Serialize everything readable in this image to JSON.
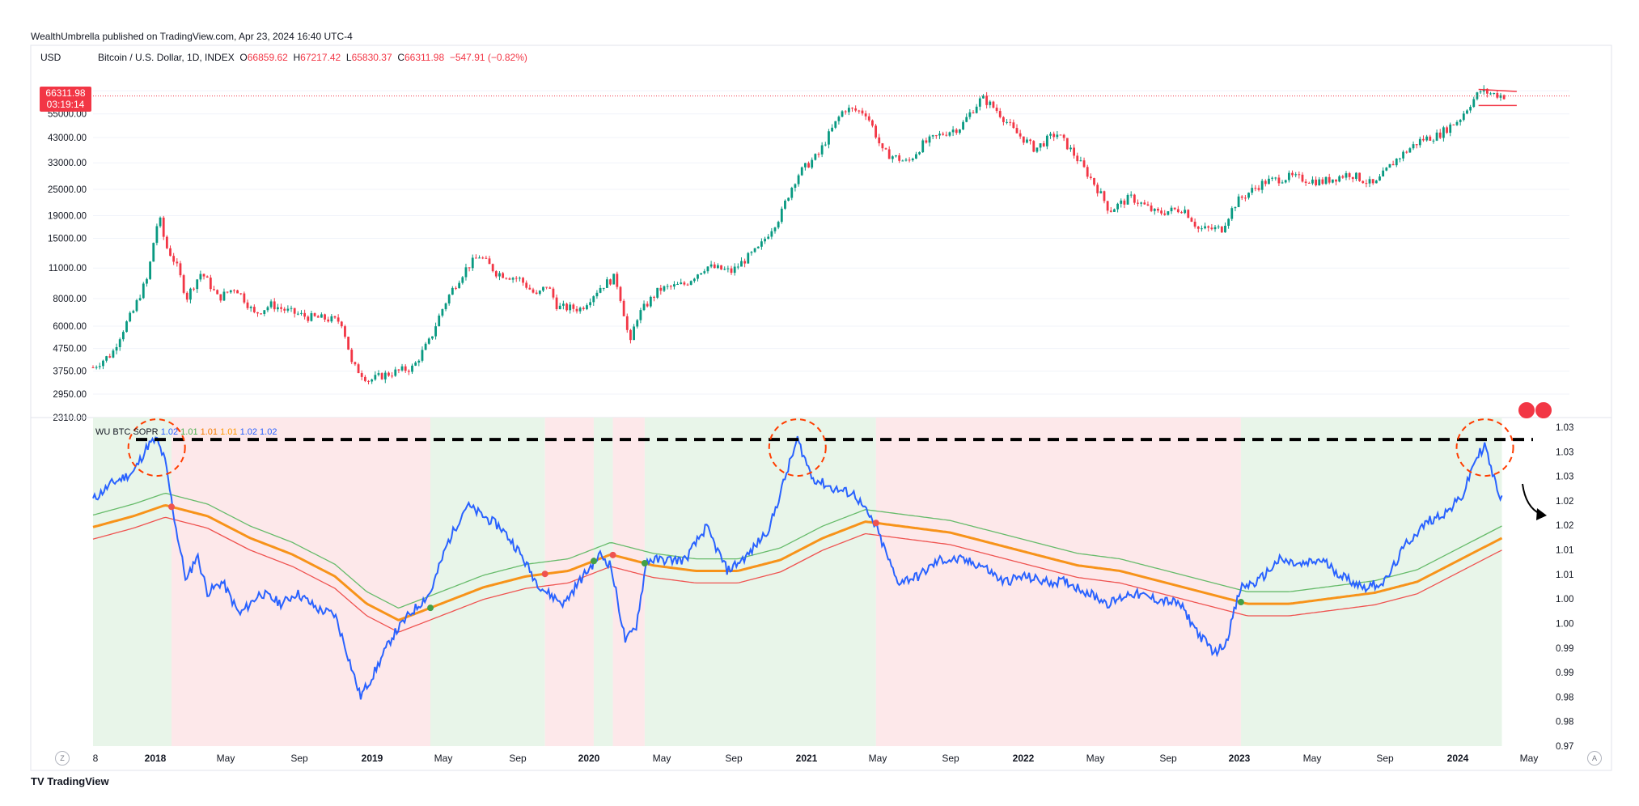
{
  "header": {
    "published": "WealthUmbrella published on TradingView.com, Apr 23, 2024 16:40 UTC-4"
  },
  "symbol": {
    "currency": "USD",
    "name": "Bitcoin / U.S. Dollar, 1D, INDEX",
    "o_label": "O",
    "o_value": "66859.62",
    "h_label": "H",
    "h_value": "67217.42",
    "l_label": "L",
    "l_value": "65830.37",
    "c_label": "C",
    "c_value": "66311.98",
    "change": "−547.91 (−0.82%)"
  },
  "price_tag": {
    "price": "66311.98",
    "countdown": "03:19:14"
  },
  "indicator": {
    "name": "WU BTC SOPR",
    "values": [
      {
        "text": "1.02",
        "color": "#2962ff"
      },
      {
        "text": "1.01",
        "color": "#4caf50"
      },
      {
        "text": "1.01",
        "color": "#f57c00"
      },
      {
        "text": "1.01",
        "color": "#ff9800"
      },
      {
        "text": "1.02",
        "color": "#2962ff"
      },
      {
        "text": "1.02",
        "color": "#2962ff"
      }
    ]
  },
  "bottom_buttons": {
    "left": "Z",
    "right": "A"
  },
  "footer": {
    "logo": "TradingView"
  },
  "colors": {
    "up": "#089981",
    "down": "#f23645",
    "sopr": "#2962ff",
    "ma_orange": "#f7931a",
    "ma_green": "#66bb6a",
    "ma_red": "#ef5350",
    "bg_green": "#e8f5e9",
    "bg_red": "#fde8ea",
    "threshold": "#000000",
    "circle": "#ff3d00"
  },
  "chart_data": [
    {
      "type": "candlestick",
      "title": "Bitcoin / U.S. Dollar, 1D, INDEX",
      "scale": "log",
      "ylim": [
        2310,
        75000
      ],
      "y_ticks": [
        "70000.00",
        "55000.00",
        "43000.00",
        "33000.00",
        "25000.00",
        "19000.00",
        "15000.00",
        "11000.00",
        "8000.00",
        "6000.00",
        "4750.00",
        "3750.00",
        "2950.00",
        "2310.00"
      ],
      "x_ticks": [
        "8",
        "2018",
        "May",
        "Sep",
        "2019",
        "May",
        "Sep",
        "2020",
        "May",
        "Sep",
        "2021",
        "May",
        "Sep",
        "2022",
        "May",
        "Sep",
        "2023",
        "May",
        "Sep",
        "2024",
        "May"
      ],
      "x_range_years": [
        2017.66,
        2024.42
      ],
      "series_price": [
        [
          2017.66,
          3900
        ],
        [
          2017.75,
          4500
        ],
        [
          2017.85,
          7000
        ],
        [
          2017.92,
          10000
        ],
        [
          2017.96,
          17000
        ],
        [
          2017.97,
          19000
        ],
        [
          2018.0,
          14000
        ],
        [
          2018.05,
          11500
        ],
        [
          2018.1,
          8000
        ],
        [
          2018.17,
          10500
        ],
        [
          2018.25,
          8000
        ],
        [
          2018.33,
          9000
        ],
        [
          2018.42,
          6800
        ],
        [
          2018.5,
          7500
        ],
        [
          2018.58,
          7000
        ],
        [
          2018.67,
          6600
        ],
        [
          2018.75,
          6500
        ],
        [
          2018.83,
          6300
        ],
        [
          2018.88,
          4000
        ],
        [
          2018.96,
          3400
        ],
        [
          2019.03,
          3600
        ],
        [
          2019.17,
          3900
        ],
        [
          2019.25,
          5200
        ],
        [
          2019.33,
          8000
        ],
        [
          2019.42,
          11000
        ],
        [
          2019.48,
          12500
        ],
        [
          2019.56,
          10500
        ],
        [
          2019.67,
          9800
        ],
        [
          2019.75,
          8200
        ],
        [
          2019.8,
          9200
        ],
        [
          2019.85,
          7300
        ],
        [
          2019.96,
          7200
        ],
        [
          2020.05,
          9000
        ],
        [
          2020.12,
          10000
        ],
        [
          2020.19,
          4800
        ],
        [
          2020.22,
          6500
        ],
        [
          2020.33,
          8800
        ],
        [
          2020.45,
          9300
        ],
        [
          2020.55,
          11200
        ],
        [
          2020.67,
          10600
        ],
        [
          2020.8,
          13500
        ],
        [
          2020.9,
          19000
        ],
        [
          2020.98,
          29000
        ],
        [
          2021.08,
          36000
        ],
        [
          2021.15,
          48000
        ],
        [
          2021.2,
          58000
        ],
        [
          2021.3,
          56000
        ],
        [
          2021.38,
          37000
        ],
        [
          2021.5,
          33000
        ],
        [
          2021.57,
          40000
        ],
        [
          2021.67,
          45000
        ],
        [
          2021.75,
          48000
        ],
        [
          2021.85,
          65000
        ],
        [
          2021.92,
          57000
        ],
        [
          2022.0,
          46000
        ],
        [
          2022.1,
          38000
        ],
        [
          2022.2,
          45000
        ],
        [
          2022.33,
          31000
        ],
        [
          2022.45,
          20000
        ],
        [
          2022.55,
          23000
        ],
        [
          2022.67,
          19500
        ],
        [
          2022.8,
          20500
        ],
        [
          2022.87,
          16500
        ],
        [
          2022.98,
          16600
        ],
        [
          2023.05,
          22000
        ],
        [
          2023.18,
          27000
        ],
        [
          2023.3,
          28500
        ],
        [
          2023.45,
          27000
        ],
        [
          2023.58,
          29500
        ],
        [
          2023.7,
          26000
        ],
        [
          2023.8,
          34000
        ],
        [
          2023.92,
          42000
        ],
        [
          2024.0,
          44000
        ],
        [
          2024.1,
          52000
        ],
        [
          2024.2,
          70000
        ],
        [
          2024.25,
          68000
        ],
        [
          2024.31,
          66312
        ]
      ]
    },
    {
      "type": "line",
      "title": "WU BTC SOPR",
      "ylim": [
        0.97,
        1.03
      ],
      "y_ticks": [
        "1.03",
        "1.03",
        "1.03",
        "1.02",
        "1.02",
        "1.01",
        "1.01",
        "1.00",
        "1.00",
        "0.99",
        "0.99",
        "0.98",
        "0.98",
        "0.97"
      ],
      "threshold": 1.026,
      "regimes": [
        {
          "from": 2017.66,
          "to": 2018.03,
          "state": "bull"
        },
        {
          "from": 2018.03,
          "to": 2019.25,
          "state": "bear"
        },
        {
          "from": 2019.25,
          "to": 2019.79,
          "state": "bull"
        },
        {
          "from": 2019.79,
          "to": 2020.02,
          "state": "bear"
        },
        {
          "from": 2020.02,
          "to": 2020.11,
          "state": "bull"
        },
        {
          "from": 2020.11,
          "to": 2020.26,
          "state": "bear"
        },
        {
          "from": 2020.26,
          "to": 2021.35,
          "state": "bull"
        },
        {
          "from": 2021.35,
          "to": 2023.07,
          "state": "bear"
        },
        {
          "from": 2023.07,
          "to": 2024.3,
          "state": "bull"
        }
      ],
      "series": [
        {
          "name": "SOPR",
          "points": [
            [
              2017.66,
              1.015
            ],
            [
              2017.75,
              1.018
            ],
            [
              2017.85,
              1.02
            ],
            [
              2017.92,
              1.025
            ],
            [
              2017.96,
              1.026
            ],
            [
              2018.0,
              1.022
            ],
            [
              2018.05,
              1.01
            ],
            [
              2018.1,
              1.0
            ],
            [
              2018.15,
              1.005
            ],
            [
              2018.2,
              0.998
            ],
            [
              2018.27,
              1.0
            ],
            [
              2018.35,
              0.994
            ],
            [
              2018.45,
              0.998
            ],
            [
              2018.55,
              0.996
            ],
            [
              2018.62,
              0.998
            ],
            [
              2018.72,
              0.995
            ],
            [
              2018.8,
              0.994
            ],
            [
              2018.85,
              0.988
            ],
            [
              2018.92,
              0.979
            ],
            [
              2018.98,
              0.983
            ],
            [
              2019.07,
              0.99
            ],
            [
              2019.15,
              0.994
            ],
            [
              2019.25,
              0.998
            ],
            [
              2019.33,
              1.007
            ],
            [
              2019.42,
              1.014
            ],
            [
              2019.5,
              1.012
            ],
            [
              2019.58,
              1.01
            ],
            [
              2019.66,
              1.006
            ],
            [
              2019.75,
              1.0
            ],
            [
              2019.8,
              0.998
            ],
            [
              2019.88,
              0.996
            ],
            [
              2019.95,
              1.0
            ],
            [
              2020.05,
              1.005
            ],
            [
              2020.1,
              1.003
            ],
            [
              2020.17,
              0.989
            ],
            [
              2020.22,
              0.992
            ],
            [
              2020.27,
              1.004
            ],
            [
              2020.33,
              1.004
            ],
            [
              2020.45,
              1.004
            ],
            [
              2020.55,
              1.01
            ],
            [
              2020.65,
              1.002
            ],
            [
              2020.75,
              1.005
            ],
            [
              2020.85,
              1.01
            ],
            [
              2020.93,
              1.02
            ],
            [
              2020.98,
              1.026
            ],
            [
              2021.05,
              1.019
            ],
            [
              2021.15,
              1.017
            ],
            [
              2021.25,
              1.016
            ],
            [
              2021.35,
              1.01
            ],
            [
              2021.45,
              1.0
            ],
            [
              2021.55,
              1.001
            ],
            [
              2021.65,
              1.004
            ],
            [
              2021.75,
              1.004
            ],
            [
              2021.85,
              1.003
            ],
            [
              2021.95,
              1.0
            ],
            [
              2022.05,
              1.001
            ],
            [
              2022.15,
              1.0
            ],
            [
              2022.25,
              1.0
            ],
            [
              2022.35,
              0.998
            ],
            [
              2022.45,
              0.996
            ],
            [
              2022.55,
              0.998
            ],
            [
              2022.65,
              0.997
            ],
            [
              2022.78,
              0.996
            ],
            [
              2022.88,
              0.99
            ],
            [
              2022.95,
              0.987
            ],
            [
              2023.0,
              0.989
            ],
            [
              2023.07,
              0.999
            ],
            [
              2023.15,
              1.0
            ],
            [
              2023.25,
              1.004
            ],
            [
              2023.35,
              1.003
            ],
            [
              2023.45,
              1.004
            ],
            [
              2023.55,
              1.001
            ],
            [
              2023.65,
              0.999
            ],
            [
              2023.75,
              1.0
            ],
            [
              2023.85,
              1.007
            ],
            [
              2023.95,
              1.011
            ],
            [
              2024.05,
              1.013
            ],
            [
              2024.12,
              1.016
            ],
            [
              2024.17,
              1.022
            ],
            [
              2024.22,
              1.025
            ],
            [
              2024.26,
              1.019
            ],
            [
              2024.3,
              1.015
            ]
          ]
        },
        {
          "name": "MA",
          "points": [
            [
              2017.66,
              1.01
            ],
            [
              2017.85,
              1.012
            ],
            [
              2018.0,
              1.014
            ],
            [
              2018.2,
              1.012
            ],
            [
              2018.4,
              1.008
            ],
            [
              2018.6,
              1.005
            ],
            [
              2018.8,
              1.001
            ],
            [
              2018.95,
              0.996
            ],
            [
              2019.1,
              0.993
            ],
            [
              2019.3,
              0.996
            ],
            [
              2019.5,
              0.999
            ],
            [
              2019.7,
              1.001
            ],
            [
              2019.9,
              1.002
            ],
            [
              2020.1,
              1.005
            ],
            [
              2020.3,
              1.003
            ],
            [
              2020.5,
              1.002
            ],
            [
              2020.7,
              1.002
            ],
            [
              2020.9,
              1.004
            ],
            [
              2021.1,
              1.008
            ],
            [
              2021.3,
              1.011
            ],
            [
              2021.5,
              1.01
            ],
            [
              2021.7,
              1.009
            ],
            [
              2021.9,
              1.007
            ],
            [
              2022.1,
              1.005
            ],
            [
              2022.3,
              1.003
            ],
            [
              2022.5,
              1.002
            ],
            [
              2022.7,
              1.0
            ],
            [
              2022.9,
              0.998
            ],
            [
              2023.1,
              0.996
            ],
            [
              2023.3,
              0.996
            ],
            [
              2023.5,
              0.997
            ],
            [
              2023.7,
              0.998
            ],
            [
              2023.9,
              1.0
            ],
            [
              2024.1,
              1.004
            ],
            [
              2024.3,
              1.008
            ]
          ]
        }
      ]
    }
  ]
}
